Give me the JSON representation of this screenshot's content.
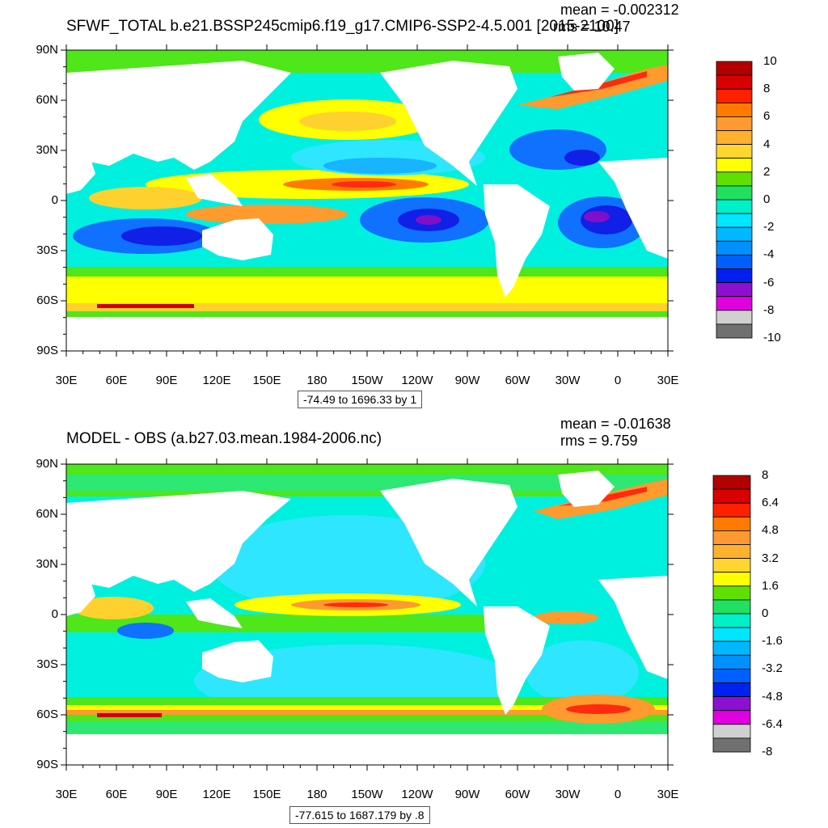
{
  "panels": [
    {
      "id": "top",
      "title": "SFWF_TOTAL b.e21.BSSP245cmip6.f19_g17.CMIP6-SSP2-4.5.001 [2015-2100]",
      "mean_text": "mean = -0.002312",
      "rms_text": "rms = 10.47",
      "range_text": "-74.49 to 1696.33 by 1",
      "lat_labels": [
        "90N",
        "60N",
        "30N",
        "0",
        "30S",
        "60S",
        "90S"
      ],
      "lon_labels": [
        "30E",
        "60E",
        "90E",
        "120E",
        "150E",
        "180",
        "150W",
        "120W",
        "90W",
        "60W",
        "30W",
        "0",
        "30E"
      ],
      "colorbar_labels": [
        "10",
        "8",
        "6",
        "4",
        "2",
        "0",
        "-2",
        "-4",
        "-6",
        "-8",
        "-10"
      ]
    },
    {
      "id": "bottom",
      "title": "MODEL - OBS (a.b27.03.mean.1984-2006.nc)",
      "mean_text": "mean = -0.01638",
      "rms_text": "rms = 9.759",
      "range_text": "-77.615 to 1687.179 by .8",
      "lat_labels": [
        "90N",
        "60N",
        "30N",
        "0",
        "30S",
        "60S",
        "90S"
      ],
      "lon_labels": [
        "30E",
        "60E",
        "90E",
        "120E",
        "150E",
        "180",
        "150W",
        "120W",
        "90W",
        "60W",
        "30W",
        "0",
        "30E"
      ],
      "colorbar_labels": [
        "8",
        "6.4",
        "4.8",
        "3.2",
        "1.6",
        "0",
        "-1.6",
        "-3.2",
        "-4.8",
        "-6.4",
        "-8"
      ]
    }
  ],
  "colorbar_colors": [
    "#b20000",
    "#d80000",
    "#ff2000",
    "#ff7a00",
    "#ff9a30",
    "#ffb030",
    "#ffd530",
    "#ffff00",
    "#60e000",
    "#20e060",
    "#00f0c8",
    "#00e6ff",
    "#00b8ff",
    "#0090ff",
    "#0060ff",
    "#0020f0",
    "#8c10d0",
    "#e000e0",
    "#d0d0d0",
    "#707070"
  ],
  "palette": {
    "green": "#4fe61a",
    "ltgreen": "#2ee874",
    "cyan": "#00f0e0",
    "ltcyan": "#2ee6ff",
    "skyblue": "#18b4ff",
    "blue": "#1070ff",
    "dkblue": "#1020e6",
    "purple": "#8010c8",
    "yellow": "#ffff00",
    "gold": "#ffd12e",
    "orange": "#ff9a2e",
    "red": "#ff2a10",
    "darkred": "#d00000",
    "land": "#ffffff"
  }
}
